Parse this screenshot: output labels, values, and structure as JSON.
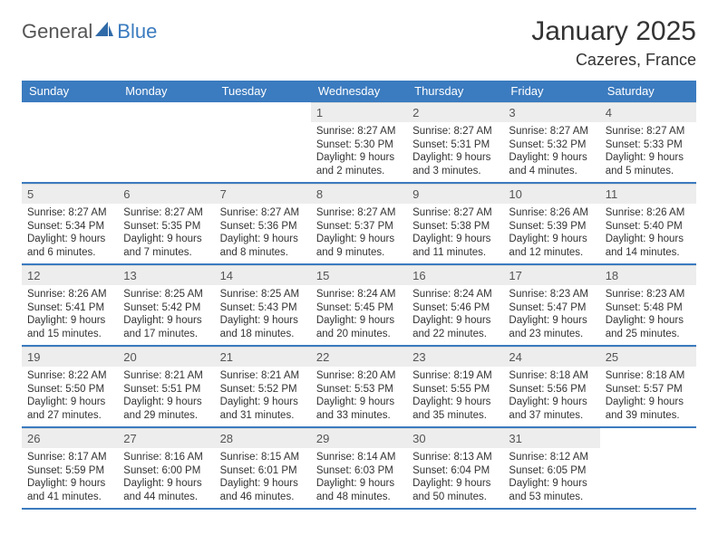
{
  "logo": {
    "part1": "General",
    "part2": "Blue"
  },
  "title": "January 2025",
  "location": "Cazeres, France",
  "colors": {
    "accent": "#3b7bbf",
    "header_text": "#ffffff",
    "daynum_bg": "#ededed",
    "daynum_text": "#555555",
    "body_text": "#333333",
    "page_bg": "#ffffff",
    "row_border": "#3b7bbf"
  },
  "day_headers": [
    "Sunday",
    "Monday",
    "Tuesday",
    "Wednesday",
    "Thursday",
    "Friday",
    "Saturday"
  ],
  "weeks": [
    [
      null,
      null,
      null,
      {
        "n": "1",
        "sr": "8:27 AM",
        "ss": "5:30 PM",
        "dl": "9 hours and 2 minutes."
      },
      {
        "n": "2",
        "sr": "8:27 AM",
        "ss": "5:31 PM",
        "dl": "9 hours and 3 minutes."
      },
      {
        "n": "3",
        "sr": "8:27 AM",
        "ss": "5:32 PM",
        "dl": "9 hours and 4 minutes."
      },
      {
        "n": "4",
        "sr": "8:27 AM",
        "ss": "5:33 PM",
        "dl": "9 hours and 5 minutes."
      }
    ],
    [
      {
        "n": "5",
        "sr": "8:27 AM",
        "ss": "5:34 PM",
        "dl": "9 hours and 6 minutes."
      },
      {
        "n": "6",
        "sr": "8:27 AM",
        "ss": "5:35 PM",
        "dl": "9 hours and 7 minutes."
      },
      {
        "n": "7",
        "sr": "8:27 AM",
        "ss": "5:36 PM",
        "dl": "9 hours and 8 minutes."
      },
      {
        "n": "8",
        "sr": "8:27 AM",
        "ss": "5:37 PM",
        "dl": "9 hours and 9 minutes."
      },
      {
        "n": "9",
        "sr": "8:27 AM",
        "ss": "5:38 PM",
        "dl": "9 hours and 11 minutes."
      },
      {
        "n": "10",
        "sr": "8:26 AM",
        "ss": "5:39 PM",
        "dl": "9 hours and 12 minutes."
      },
      {
        "n": "11",
        "sr": "8:26 AM",
        "ss": "5:40 PM",
        "dl": "9 hours and 14 minutes."
      }
    ],
    [
      {
        "n": "12",
        "sr": "8:26 AM",
        "ss": "5:41 PM",
        "dl": "9 hours and 15 minutes."
      },
      {
        "n": "13",
        "sr": "8:25 AM",
        "ss": "5:42 PM",
        "dl": "9 hours and 17 minutes."
      },
      {
        "n": "14",
        "sr": "8:25 AM",
        "ss": "5:43 PM",
        "dl": "9 hours and 18 minutes."
      },
      {
        "n": "15",
        "sr": "8:24 AM",
        "ss": "5:45 PM",
        "dl": "9 hours and 20 minutes."
      },
      {
        "n": "16",
        "sr": "8:24 AM",
        "ss": "5:46 PM",
        "dl": "9 hours and 22 minutes."
      },
      {
        "n": "17",
        "sr": "8:23 AM",
        "ss": "5:47 PM",
        "dl": "9 hours and 23 minutes."
      },
      {
        "n": "18",
        "sr": "8:23 AM",
        "ss": "5:48 PM",
        "dl": "9 hours and 25 minutes."
      }
    ],
    [
      {
        "n": "19",
        "sr": "8:22 AM",
        "ss": "5:50 PM",
        "dl": "9 hours and 27 minutes."
      },
      {
        "n": "20",
        "sr": "8:21 AM",
        "ss": "5:51 PM",
        "dl": "9 hours and 29 minutes."
      },
      {
        "n": "21",
        "sr": "8:21 AM",
        "ss": "5:52 PM",
        "dl": "9 hours and 31 minutes."
      },
      {
        "n": "22",
        "sr": "8:20 AM",
        "ss": "5:53 PM",
        "dl": "9 hours and 33 minutes."
      },
      {
        "n": "23",
        "sr": "8:19 AM",
        "ss": "5:55 PM",
        "dl": "9 hours and 35 minutes."
      },
      {
        "n": "24",
        "sr": "8:18 AM",
        "ss": "5:56 PM",
        "dl": "9 hours and 37 minutes."
      },
      {
        "n": "25",
        "sr": "8:18 AM",
        "ss": "5:57 PM",
        "dl": "9 hours and 39 minutes."
      }
    ],
    [
      {
        "n": "26",
        "sr": "8:17 AM",
        "ss": "5:59 PM",
        "dl": "9 hours and 41 minutes."
      },
      {
        "n": "27",
        "sr": "8:16 AM",
        "ss": "6:00 PM",
        "dl": "9 hours and 44 minutes."
      },
      {
        "n": "28",
        "sr": "8:15 AM",
        "ss": "6:01 PM",
        "dl": "9 hours and 46 minutes."
      },
      {
        "n": "29",
        "sr": "8:14 AM",
        "ss": "6:03 PM",
        "dl": "9 hours and 48 minutes."
      },
      {
        "n": "30",
        "sr": "8:13 AM",
        "ss": "6:04 PM",
        "dl": "9 hours and 50 minutes."
      },
      {
        "n": "31",
        "sr": "8:12 AM",
        "ss": "6:05 PM",
        "dl": "9 hours and 53 minutes."
      },
      null
    ]
  ],
  "labels": {
    "sunrise": "Sunrise:",
    "sunset": "Sunset:",
    "daylight": "Daylight:"
  }
}
